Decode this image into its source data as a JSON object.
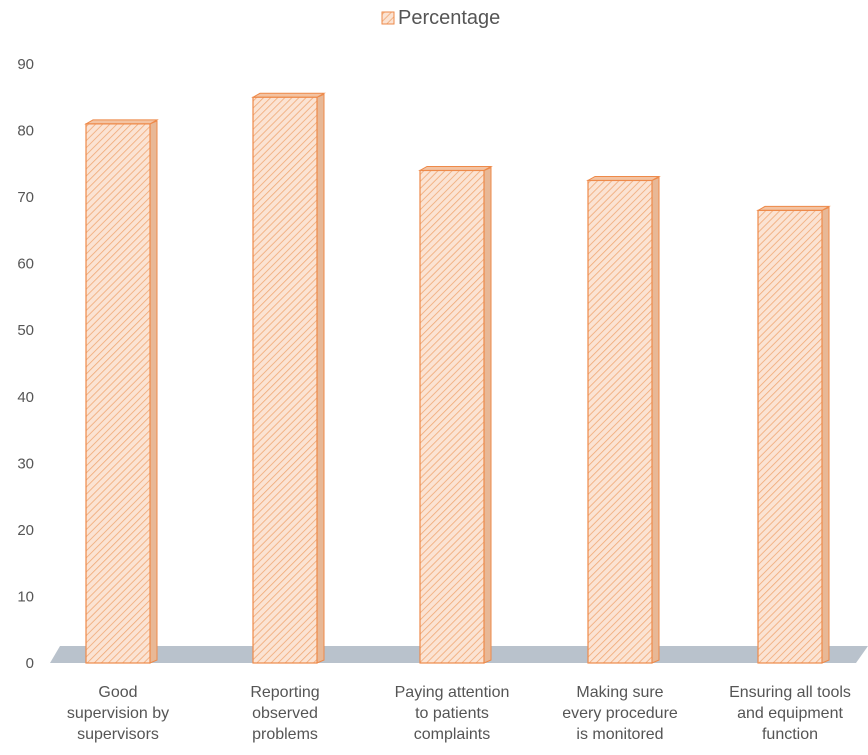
{
  "chart_data": {
    "type": "bar",
    "categories": [
      [
        "Good",
        "supervision by",
        "supervisors"
      ],
      [
        "Reporting",
        "observed",
        "problems"
      ],
      [
        "Paying attention",
        "to patients",
        "complaints"
      ],
      [
        "Making sure",
        "every procedure",
        "is monitored"
      ],
      [
        "Ensuring all tools",
        "and equipment",
        "function"
      ]
    ],
    "series": [
      {
        "name": "Percentage",
        "values": [
          81,
          85,
          74,
          72.5,
          68
        ]
      }
    ],
    "ylim": [
      0,
      90
    ],
    "yticks": [
      0,
      10,
      20,
      30,
      40,
      50,
      60,
      70,
      80,
      90
    ],
    "legend_position": "top",
    "grid": false,
    "style": "3d-column",
    "colors": {
      "bar_fill": "#fbe3d3",
      "bar_hatch": "#f0a875",
      "bar_edge": "#ee8a4a",
      "bar_side": "#e8b896",
      "bar_top": "#f3c3a2",
      "floor": "#b9c2cc"
    }
  }
}
